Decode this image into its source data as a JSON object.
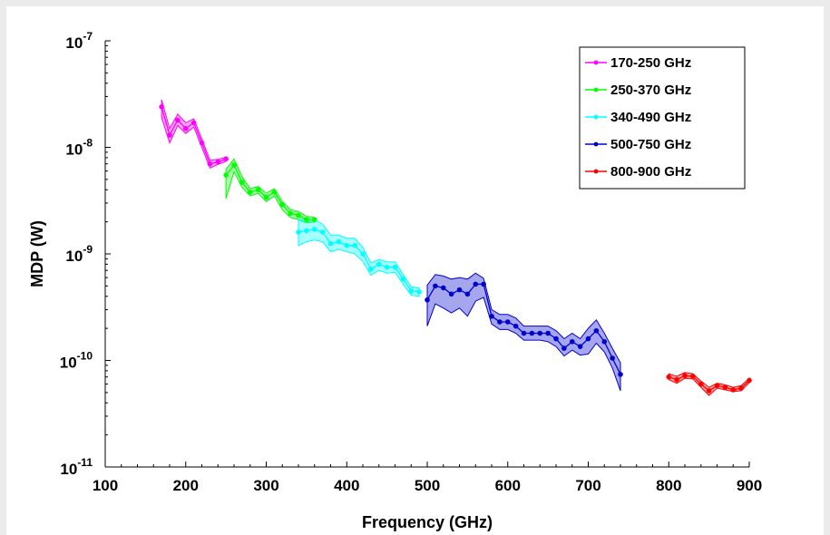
{
  "chart_data": {
    "type": "line",
    "xlabel": "Frequency (GHz)",
    "ylabel": "MDP (W)",
    "yscale": "log",
    "xlim": [
      100,
      900
    ],
    "ylim": [
      1e-11,
      1e-07
    ],
    "x_ticks": [
      "100",
      "200",
      "300",
      "400",
      "500",
      "600",
      "700",
      "800",
      "900"
    ],
    "y_ticks": [
      {
        "base": "10",
        "exp": "-11"
      },
      {
        "base": "10",
        "exp": "-10"
      },
      {
        "base": "10",
        "exp": "-9"
      },
      {
        "base": "10",
        "exp": "-8"
      },
      {
        "base": "10",
        "exp": "-7"
      }
    ],
    "grid": false,
    "legend": "top-right",
    "series": [
      {
        "name": "170-250 GHz",
        "color": "#ff00ff",
        "x": [
          170,
          180,
          190,
          200,
          210,
          220,
          230,
          240,
          250
        ],
        "y": [
          2.4e-08,
          1.3e-08,
          1.8e-08,
          1.5e-08,
          1.7e-08,
          1.1e-08,
          7e-09,
          7.3e-09,
          7.8e-09
        ],
        "lower": [
          1.9e-08,
          1.1e-08,
          1.6e-08,
          1.35e-08,
          1.55e-08,
          1e-08,
          6.4e-09,
          6.9e-09,
          7.4e-09
        ],
        "upper": [
          2.8e-08,
          1.5e-08,
          2.05e-08,
          1.7e-08,
          1.85e-08,
          1.2e-08,
          7.6e-09,
          7.7e-09,
          8.1e-09
        ]
      },
      {
        "name": "250-370 GHz",
        "color": "#00ff00",
        "x": [
          250,
          260,
          270,
          280,
          290,
          300,
          310,
          320,
          330,
          340,
          350,
          360
        ],
        "y": [
          5.5e-09,
          6.8e-09,
          4.7e-09,
          3.8e-09,
          4e-09,
          3.4e-09,
          3.8e-09,
          2.9e-09,
          2.4e-09,
          2.3e-09,
          2.1e-09,
          2.1e-09
        ],
        "lower": [
          3.3e-09,
          5.9e-09,
          4.2e-09,
          3.5e-09,
          3.7e-09,
          3.1e-09,
          3.5e-09,
          2.6e-09,
          2.2e-09,
          2.1e-09,
          1.95e-09,
          2e-09
        ],
        "upper": [
          6.2e-09,
          7.8e-09,
          5.3e-09,
          4.1e-09,
          4.3e-09,
          3.7e-09,
          4.1e-09,
          3.1e-09,
          2.6e-09,
          2.5e-09,
          2.25e-09,
          2.2e-09
        ]
      },
      {
        "name": "340-490 GHz",
        "color": "#00ffff",
        "x": [
          340,
          350,
          360,
          370,
          380,
          390,
          400,
          410,
          420,
          430,
          440,
          450,
          460,
          470,
          480,
          490
        ],
        "y": [
          1.6e-09,
          1.65e-09,
          1.7e-09,
          1.6e-09,
          1.25e-09,
          1.3e-09,
          1.2e-09,
          1.2e-09,
          1e-09,
          7.2e-10,
          8e-10,
          7.5e-10,
          7.5e-10,
          5.8e-10,
          4.5e-10,
          4.4e-10
        ],
        "lower": [
          1.2e-09,
          1.3e-09,
          1.35e-09,
          1.3e-09,
          1.05e-09,
          1.1e-09,
          1.05e-09,
          1e-09,
          8.5e-10,
          6.3e-10,
          7e-10,
          6.6e-10,
          6.7e-10,
          5.2e-10,
          4.1e-10,
          4e-10
        ],
        "upper": [
          2.1e-09,
          2.1e-09,
          2.1e-09,
          1.9e-09,
          1.5e-09,
          1.5e-09,
          1.4e-09,
          1.4e-09,
          1.15e-09,
          8.2e-10,
          8.9e-10,
          8.4e-10,
          8.4e-10,
          6.4e-10,
          4.9e-10,
          4.8e-10
        ]
      },
      {
        "name": "500-750 GHz",
        "color": "#0000cd",
        "x": [
          500,
          510,
          520,
          530,
          540,
          550,
          560,
          570,
          580,
          590,
          600,
          610,
          620,
          630,
          640,
          650,
          660,
          670,
          680,
          690,
          700,
          710,
          720,
          730,
          740
        ],
        "y": [
          3.7e-10,
          5e-10,
          4.8e-10,
          4.2e-10,
          4.6e-10,
          4.2e-10,
          5.2e-10,
          5.2e-10,
          2.6e-10,
          2.3e-10,
          2.3e-10,
          2.1e-10,
          1.8e-10,
          1.8e-10,
          1.8e-10,
          1.8e-10,
          1.6e-10,
          1.3e-10,
          1.5e-10,
          1.35e-10,
          1.6e-10,
          1.9e-10,
          1.5e-10,
          1.05e-10,
          7.4e-11
        ],
        "lower": [
          2.1e-10,
          3.4e-10,
          3.1e-10,
          2.8e-10,
          3.1e-10,
          2.6e-10,
          3.6e-10,
          3.9e-10,
          2.2e-10,
          1.95e-10,
          1.95e-10,
          1.8e-10,
          1.55e-10,
          1.55e-10,
          1.55e-10,
          1.5e-10,
          1.35e-10,
          1.1e-10,
          1.25e-10,
          1.12e-10,
          1.15e-10,
          1.45e-10,
          1.2e-10,
          8.5e-11,
          5.2e-11
        ],
        "upper": [
          5.1e-10,
          6.4e-10,
          6.2e-10,
          5.8e-10,
          6e-10,
          5.8e-10,
          6.6e-10,
          5.9e-10,
          3e-10,
          2.7e-10,
          2.7e-10,
          2.5e-10,
          2.1e-10,
          2.1e-10,
          2.1e-10,
          2.1e-10,
          1.9e-10,
          1.6e-10,
          1.8e-10,
          1.6e-10,
          2e-10,
          2.4e-10,
          1.8e-10,
          1.3e-10,
          9.5e-11
        ]
      },
      {
        "name": "800-900 GHz",
        "color": "#ff0000",
        "x": [
          800,
          810,
          820,
          830,
          840,
          850,
          860,
          870,
          880,
          890,
          900
        ],
        "y": [
          7e-11,
          6.6e-11,
          7.2e-11,
          7.1e-11,
          6e-11,
          5.2e-11,
          5.8e-11,
          5.6e-11,
          5.3e-11,
          5.5e-11,
          6.5e-11
        ],
        "lower": [
          6.6e-11,
          6.1e-11,
          6.8e-11,
          6.7e-11,
          5.6e-11,
          4.7e-11,
          5.5e-11,
          5.3e-11,
          5.1e-11,
          5.2e-11,
          6.2e-11
        ],
        "upper": [
          7.5e-11,
          7.1e-11,
          7.7e-11,
          7.5e-11,
          6.4e-11,
          5.6e-11,
          6.1e-11,
          5.9e-11,
          5.6e-11,
          5.8e-11,
          6.8e-11
        ]
      }
    ]
  }
}
